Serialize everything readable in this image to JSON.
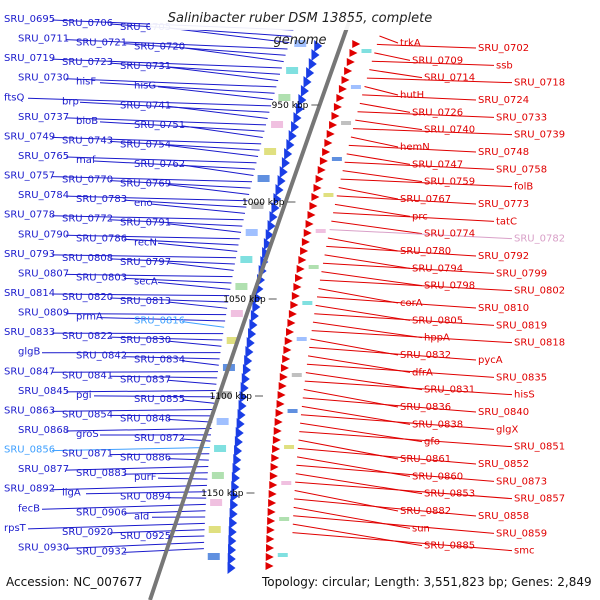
{
  "title": "Salinibacter ruber DSM 13855, complete genome",
  "accession": "Accession: NC_007677",
  "summary": "Topology: circular; Length: 3,551,823 bp; Genes: 2,849",
  "colors": {
    "left": "#1a1acc",
    "right": "#e00000",
    "highlight_left": "#3fa0ff",
    "highlight_right": "#d9a0c8",
    "backbone": "#777777"
  },
  "ticks": [
    "950 kbp",
    "1000 kbp",
    "1050 kbp",
    "1100 kbp",
    "1150 kbp"
  ],
  "left_labels": [
    "SRU_0695",
    "SRU_0706",
    "SRU_0705",
    "SRU_0711",
    "SRU_0721",
    "SRU_0720",
    "SRU_0719",
    "SRU_0723",
    "SRU_0731",
    "SRU_0730",
    "hisF",
    "hisG",
    "ftsQ",
    "brp",
    "SRU_0741",
    "SRU_0737",
    "bioB",
    "SRU_0751",
    "SRU_0749",
    "SRU_0743",
    "SRU_0754",
    "SRU_0765",
    "maf",
    "SRU_0762",
    "SRU_0757",
    "SRU_0770",
    "SRU_0769",
    "SRU_0784",
    "SRU_0783",
    "eno",
    "SRU_0778",
    "SRU_0772",
    "SRU_0791",
    "SRU_0790",
    "SRU_0786",
    "recN",
    "SRU_0793",
    "SRU_0808",
    "SRU_0797",
    "SRU_0807",
    "SRU_0803",
    "secA",
    "SRU_0814",
    "SRU_0820",
    "SRU_0813",
    "SRU_0809",
    "prmA",
    "SRU_0816",
    "SRU_0833",
    "SRU_0822",
    "SRU_0830",
    "glgB",
    "SRU_0842",
    "SRU_0834",
    "SRU_0847",
    "SRU_0841",
    "SRU_0837",
    "SRU_0845",
    "pgi",
    "SRU_0855",
    "SRU_0863",
    "SRU_0854",
    "SRU_0848",
    "SRU_0868",
    "groS",
    "SRU_0872",
    "SRU_0856",
    "SRU_0871",
    "SRU_0886",
    "SRU_0877",
    "SRU_0883",
    "purF",
    "SRU_0892",
    "ligA",
    "SRU_0894",
    "fecB",
    "SRU_0906",
    "ald",
    "rpsT",
    "SRU_0920",
    "SRU_0925",
    "SRU_0930",
    "SRU_0932"
  ],
  "right_labels": [
    "trkA",
    "SRU_0702",
    "SRU_0709",
    "ssb",
    "SRU_0714",
    "SRU_0718",
    "hutH",
    "SRU_0724",
    "SRU_0726",
    "SRU_0733",
    "SRU_0740",
    "SRU_0739",
    "hemN",
    "SRU_0748",
    "SRU_0747",
    "SRU_0758",
    "SRU_0759",
    "folB",
    "SRU_0767",
    "SRU_0773",
    "prc",
    "tatC",
    "SRU_0774",
    "SRU_0782",
    "SRU_0780",
    "SRU_0792",
    "SRU_0794",
    "SRU_0799",
    "SRU_0798",
    "SRU_0802",
    "corA",
    "SRU_0810",
    "SRU_0805",
    "SRU_0819",
    "hppA",
    "SRU_0818",
    "SRU_0832",
    "pycA",
    "dfrA",
    "SRU_0835",
    "SRU_0831",
    "hisS",
    "SRU_0836",
    "SRU_0840",
    "SRU_0838",
    "glgX",
    "gfo",
    "SRU_0851",
    "SRU_0861",
    "SRU_0852",
    "SRU_0860",
    "SRU_0873",
    "SRU_0853",
    "SRU_0857",
    "SRU_0882",
    "SRU_0858",
    "sun",
    "SRU_0859",
    "SRU_0885",
    "smc"
  ]
}
